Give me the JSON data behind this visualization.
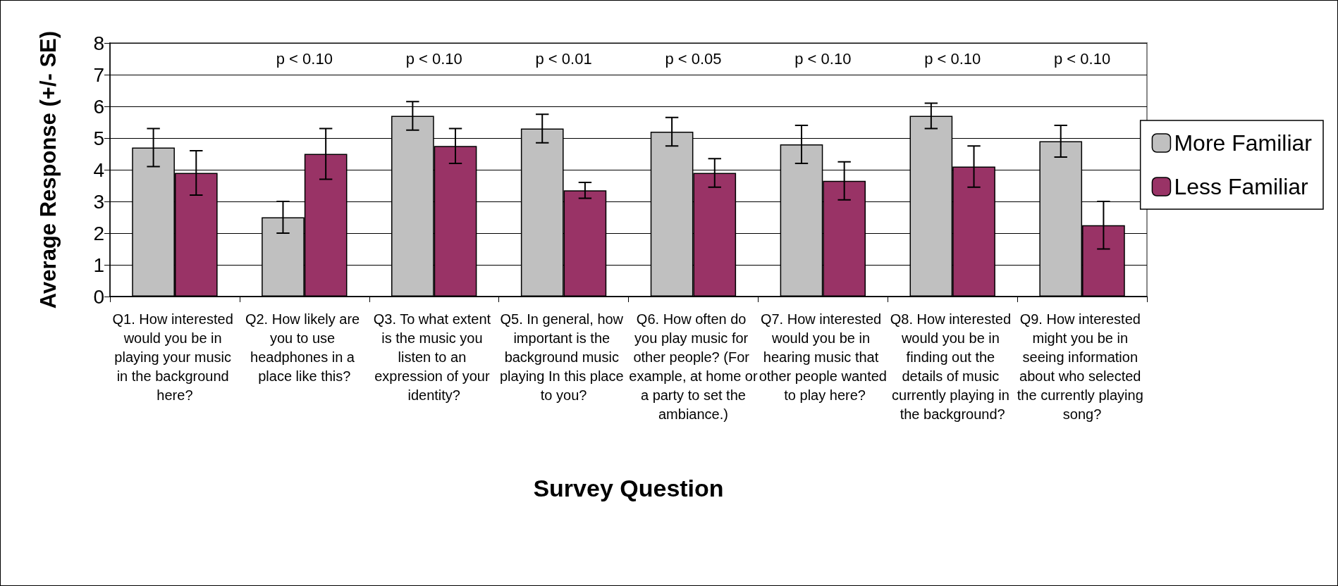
{
  "chart_data": {
    "type": "bar",
    "xlabel": "Survey Question",
    "ylabel": "Average Response (+/- SE)",
    "categories": [
      "Q1. How interested would you be in playing your music in the background here?",
      "Q2. How likely are you to use headphones in a place like this?",
      "Q3. To what extent is the music you listen to an expression of your identity?",
      "Q5. In general, how important is the background music playing In this place to you?",
      "Q6. How often do you play music for other people? (For example, at home or a party to set the ambiance.)",
      "Q7. How interested would you be in hearing music that other people wanted to play here?",
      "Q8. How interested would you be in finding out the details of music currently playing in the background?",
      "Q9. How interested might you be in seeing information about who selected the currently playing song?"
    ],
    "series": [
      {
        "name": "More Familiar",
        "color": "#c0c0c0",
        "values": [
          4.7,
          2.5,
          5.7,
          5.3,
          5.2,
          4.8,
          5.7,
          4.9
        ],
        "errors": [
          0.6,
          0.5,
          0.45,
          0.45,
          0.45,
          0.6,
          0.4,
          0.5
        ]
      },
      {
        "name": "Less Familiar",
        "color": "#993366",
        "values": [
          3.9,
          4.5,
          4.75,
          3.35,
          3.9,
          3.65,
          4.1,
          2.25
        ],
        "errors": [
          0.7,
          0.8,
          0.55,
          0.25,
          0.45,
          0.6,
          0.65,
          0.75
        ]
      }
    ],
    "annotations": [
      "p < 0.10",
      "p < 0.10",
      "p < 0.01",
      "p < 0.05",
      "p < 0.10",
      "p < 0.10",
      "p < 0.10"
    ],
    "ylim": [
      0,
      8
    ],
    "yticks": [
      0,
      1,
      2,
      3,
      4,
      5,
      6,
      7,
      8
    ],
    "grid": "y",
    "legend": "right"
  }
}
